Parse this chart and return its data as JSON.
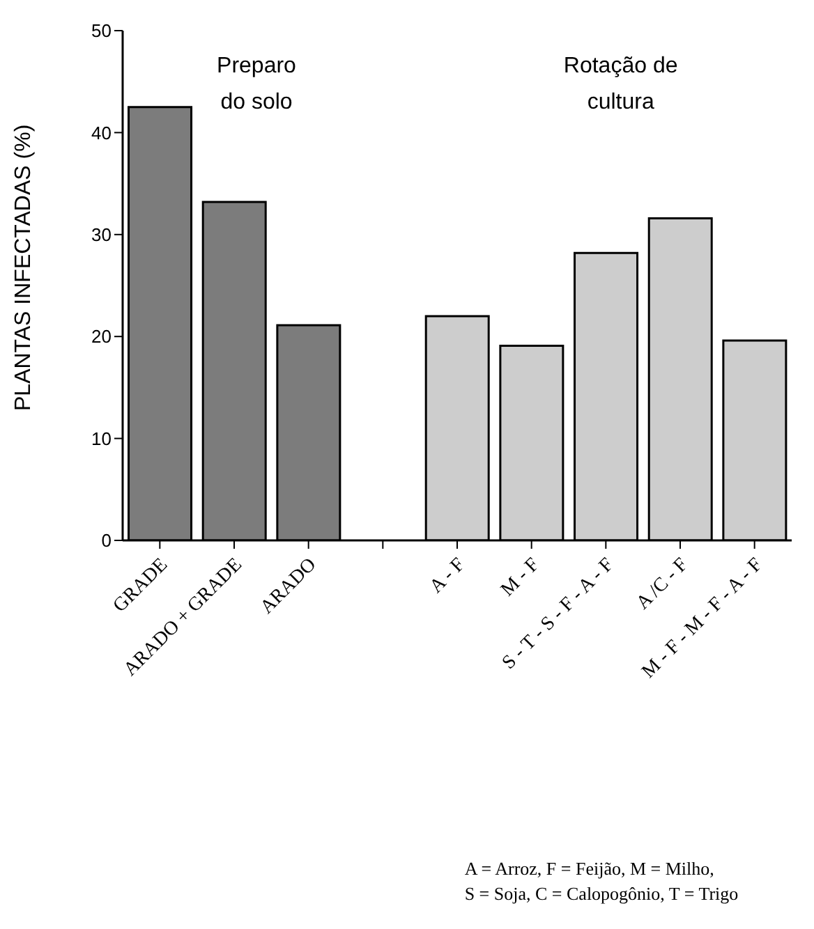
{
  "chart_data": {
    "type": "bar",
    "ylabel": "PLANTAS INFECTADAS (%)",
    "categories": [
      "GRADE",
      "ARADO + GRADE",
      "ARADO",
      null,
      "A - F",
      "M - F",
      "S - T - S - F - A - F",
      "A /C - F",
      "M - F - M - F - A - F"
    ],
    "values": [
      42.5,
      33.2,
      21.1,
      null,
      22.0,
      19.1,
      28.2,
      31.6,
      19.6
    ],
    "colors": [
      "#7c7c7c",
      "#7c7c7c",
      "#7c7c7c",
      "#ffffff",
      "#cdcdcd",
      "#cdcdcd",
      "#cdcdcd",
      "#cdcdcd",
      "#cdcdcd"
    ],
    "ylim": [
      0,
      50
    ],
    "yticks": [
      0,
      10,
      20,
      30,
      40,
      50
    ],
    "annotations": [
      "Preparo\ndo solo",
      "Rotação de\ncultura",
      "A = Arroz, F = Feijão, M = Milho,\nS = Soja, C = Calopogônio, T = Trigo"
    ]
  }
}
